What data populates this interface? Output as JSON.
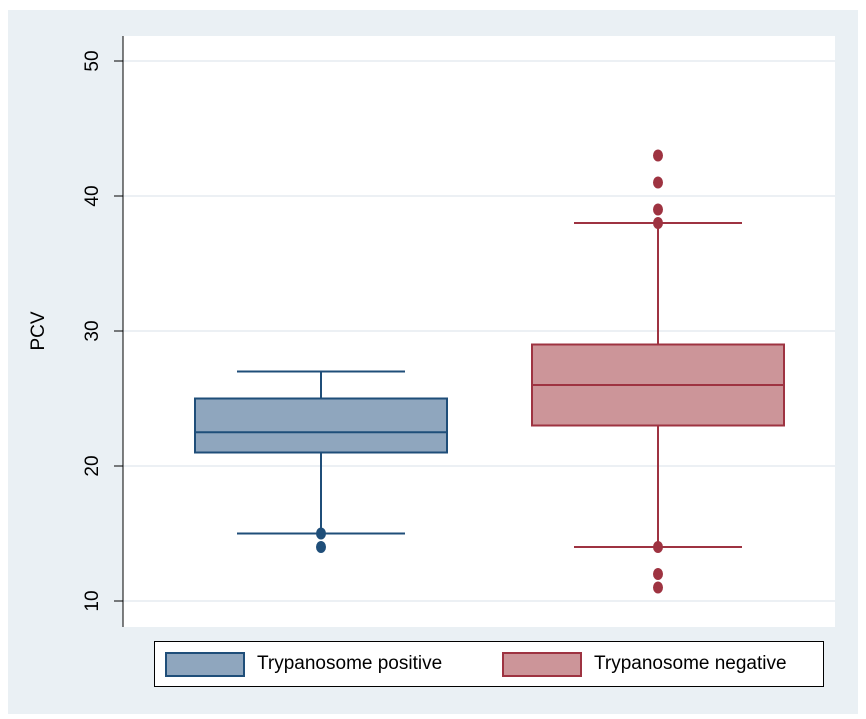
{
  "chart_data": {
    "type": "box",
    "ylabel": "PCV",
    "xlabel": "",
    "ylim": [
      8,
      52
    ],
    "yticks": [
      10,
      20,
      30,
      40,
      50
    ],
    "grid": true,
    "legend_position": "bottom",
    "series": [
      {
        "name": "Trypanosome positive",
        "color_fill": "#8fa6be",
        "color_line": "#1f4e79",
        "whisker_low": 15,
        "q1": 21,
        "median": 22.5,
        "q3": 25,
        "whisker_high": 27,
        "outliers": [
          15,
          14
        ]
      },
      {
        "name": "Trypanosome negative",
        "color_fill": "#cc9599",
        "color_line": "#9e3341",
        "whisker_low": 14,
        "q1": 23,
        "median": 26,
        "q3": 29,
        "whisker_high": 38,
        "outliers": [
          43,
          41,
          39,
          38,
          14,
          12,
          11
        ]
      }
    ]
  }
}
